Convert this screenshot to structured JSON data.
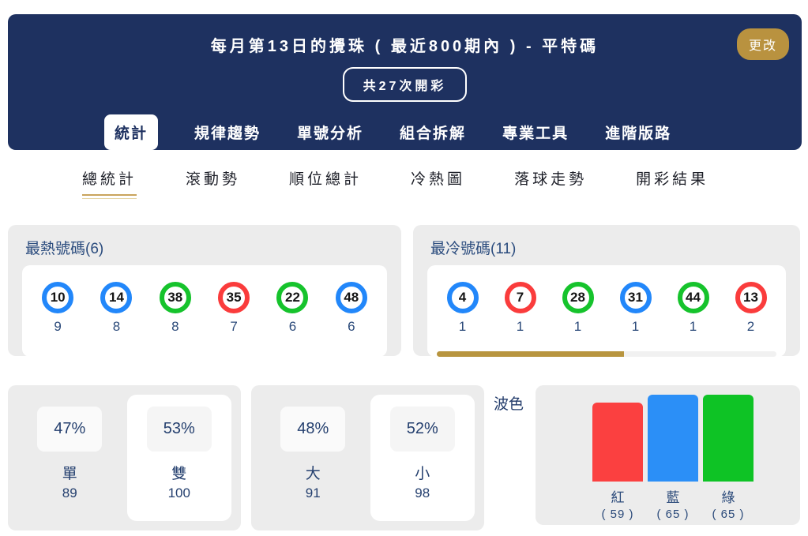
{
  "header": {
    "title": "每月第13日的攪珠 ( 最近800期內 ) - 平特碼",
    "change_button": "更改",
    "draws_pill": "共27次開彩",
    "tabs": [
      {
        "label": "統計",
        "state": "active"
      },
      {
        "label": "規律趨勢",
        "state": "normal"
      },
      {
        "label": "單號分析",
        "state": "normal"
      },
      {
        "label": "組合拆解",
        "state": "normal"
      },
      {
        "label": "專業工具",
        "state": "normal"
      },
      {
        "label": "進階版路",
        "state": "normal"
      }
    ]
  },
  "subtabs": [
    {
      "label": "總統計",
      "state": "active"
    },
    {
      "label": "滾動勢",
      "state": "normal"
    },
    {
      "label": "順位總計",
      "state": "normal"
    },
    {
      "label": "冷熱圖",
      "state": "normal"
    },
    {
      "label": "落球走勢",
      "state": "normal"
    },
    {
      "label": "開彩結果",
      "state": "normal"
    }
  ],
  "hot_card": {
    "title": "最熱號碼(6)",
    "balls": [
      {
        "num": "10",
        "color": "blue",
        "count": "9"
      },
      {
        "num": "14",
        "color": "blue",
        "count": "8"
      },
      {
        "num": "38",
        "color": "green",
        "count": "8"
      },
      {
        "num": "35",
        "color": "red",
        "count": "7"
      },
      {
        "num": "22",
        "color": "green",
        "count": "6"
      },
      {
        "num": "48",
        "color": "blue",
        "count": "6"
      }
    ]
  },
  "cold_card": {
    "title": "最冷號碼(11)",
    "balls": [
      {
        "num": "4",
        "color": "blue",
        "count": "1"
      },
      {
        "num": "7",
        "color": "red",
        "count": "1"
      },
      {
        "num": "28",
        "color": "green",
        "count": "1"
      },
      {
        "num": "31",
        "color": "blue",
        "count": "1"
      },
      {
        "num": "44",
        "color": "green",
        "count": "1"
      },
      {
        "num": "13",
        "color": "red",
        "count": "2"
      }
    ]
  },
  "odd_even": {
    "cols": [
      {
        "pct": "47%",
        "label": "單",
        "count": "89",
        "state": "normal"
      },
      {
        "pct": "53%",
        "label": "雙",
        "count": "100",
        "state": "highlight"
      }
    ]
  },
  "big_small": {
    "cols": [
      {
        "pct": "48%",
        "label": "大",
        "count": "91",
        "state": "normal"
      },
      {
        "pct": "52%",
        "label": "小",
        "count": "98",
        "state": "highlight"
      }
    ]
  },
  "bose": {
    "label": "波色",
    "bars": [
      {
        "name": "紅",
        "count_text": "( 59 )",
        "value": 59,
        "color": "#fb4040"
      },
      {
        "name": "藍",
        "count_text": "( 65 )",
        "value": 65,
        "color": "#2b8ff7"
      },
      {
        "name": "綠",
        "count_text": "( 65 )",
        "value": 65,
        "color": "#0ec325"
      }
    ]
  },
  "chart_data": {
    "type": "bar",
    "title": "波色",
    "categories": [
      "紅",
      "藍",
      "綠"
    ],
    "values": [
      59,
      65,
      65
    ],
    "xlabel": "",
    "ylabel": "",
    "ylim": [
      0,
      65
    ],
    "grid": false,
    "legend": "none",
    "colors": [
      "#fb4040",
      "#2b8ff7",
      "#0ec325"
    ]
  },
  "colors": {
    "header_navy": "#1e3160",
    "accent_gold": "#b9923f",
    "card_gray": "#ececec",
    "text_navy": "#2b4a7a",
    "ball_blue": "#2287fa",
    "ball_green": "#16c32c",
    "ball_red": "#fa3c3c"
  }
}
